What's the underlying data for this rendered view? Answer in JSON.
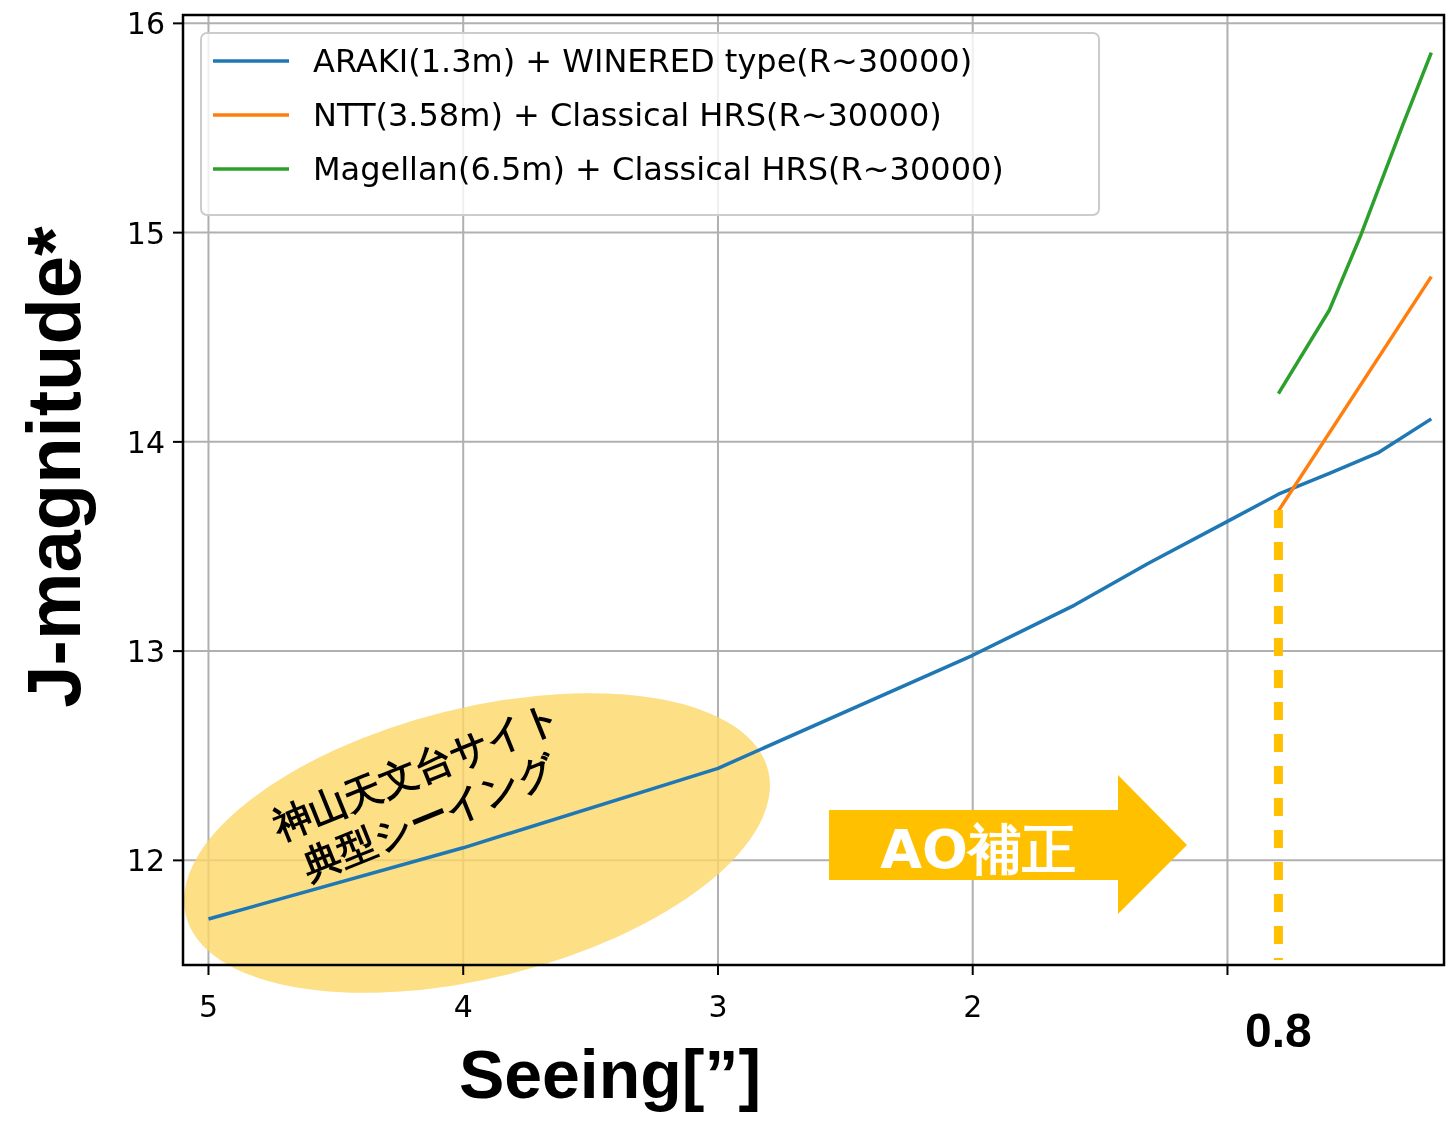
{
  "chart_data": {
    "type": "line",
    "xlabel": "Seeing[”]",
    "ylabel": "J-magnitude*",
    "xlim": [
      5.1,
      0.15
    ],
    "ylim": [
      11.5,
      16.04
    ],
    "xticks": [
      5,
      4,
      3,
      2,
      {
        "value": 1,
        "label": null
      }
    ],
    "yticks": [
      12,
      13,
      14,
      15,
      16
    ],
    "grid": true,
    "legend": "top left",
    "line_style": "solid",
    "series": [
      {
        "name": "ARAKI(1.3m) + WINERED type(R~30000)",
        "color": "#1f77b4",
        "x": [
          5,
          4,
          3,
          2,
          1.6,
          1.31,
          1,
          0.8,
          0.6,
          0.405,
          0.2
        ],
        "values": [
          11.72,
          12.06,
          12.44,
          12.98,
          13.22,
          13.42,
          13.62,
          13.75,
          13.85,
          13.95,
          14.11
        ]
      },
      {
        "name": "NTT(3.58m) + Classical HRS(R~30000)",
        "color": "#ff7f0e",
        "x": [
          0.8,
          0.2
        ],
        "values": [
          13.67,
          14.79
        ]
      },
      {
        "name": "Magellan(6.5m) + Classical HRS(R~30000)",
        "color": "#2ca02c",
        "x": [
          0.8,
          0.6,
          0.476,
          0.31,
          0.2
        ],
        "values": [
          14.23,
          14.63,
          14.99,
          15.52,
          15.86
        ]
      }
    ],
    "ref_lines": [
      {
        "axis": "x",
        "value": 0.8,
        "label": "0.8",
        "color": "#ffc000",
        "line_style": "dashed"
      }
    ],
    "annotations": [
      "神山天文台サイト\n典型シーイング",
      "AO補正"
    ]
  }
}
